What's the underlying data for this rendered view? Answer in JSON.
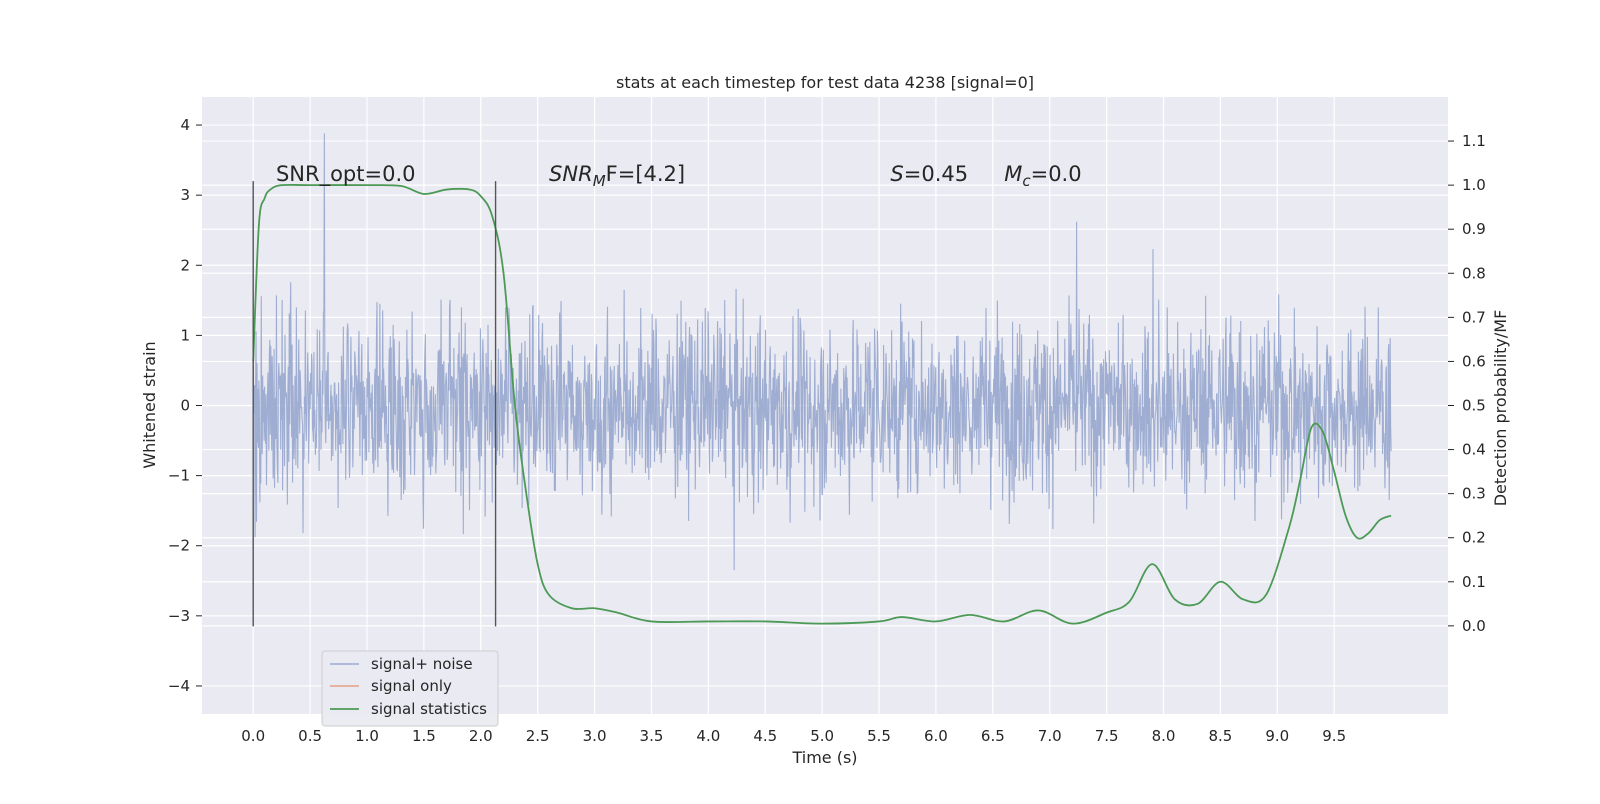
{
  "chart_data": {
    "type": "line",
    "title": "stats at each timestep for test data 4238 [signal=0]",
    "xlabel": "Time (s)",
    "ylabel": "Whitened strain",
    "ylabel_right": "Detection probability/MF",
    "xlim": [
      -0.45,
      10.5
    ],
    "ylim": [
      -4.4,
      4.4
    ],
    "ylim_right": [
      -0.2,
      1.2
    ],
    "x_ticks": [
      "0.0",
      "0.5",
      "1.0",
      "1.5",
      "2.0",
      "2.5",
      "3.0",
      "3.5",
      "4.0",
      "4.5",
      "5.0",
      "5.5",
      "6.0",
      "6.5",
      "7.0",
      "7.5",
      "8.0",
      "8.5",
      "9.0",
      "9.5"
    ],
    "y_ticks": [
      "4",
      "3",
      "2",
      "1",
      "0",
      "−1",
      "−2",
      "−3",
      "−4"
    ],
    "y_right_ticks": [
      "1.1",
      "1.0",
      "0.9",
      "0.8",
      "0.7",
      "0.6",
      "0.5",
      "0.4",
      "0.3",
      "0.2",
      "0.1",
      "0.0"
    ],
    "grid": true,
    "legend_position": "lower-left",
    "annotations": [
      {
        "text": "SNR_opt=0.0",
        "x": 0.2,
        "y": 3.2
      },
      {
        "text": "SNR",
        "sub": "M",
        "rest": "F=[4.2]",
        "italic": true,
        "x": 2.6,
        "y": 3.2
      },
      {
        "text": "S",
        "rest": "=0.45",
        "italic": true,
        "x": 5.6,
        "y": 3.2
      },
      {
        "text": "M",
        "sub": "c",
        "rest": "=0.0",
        "italic": true,
        "x": 6.6,
        "y": 3.2
      }
    ],
    "vlines": [
      {
        "x": 0.0,
        "y": [
          -3.15,
          3.2
        ]
      },
      {
        "x": 2.13,
        "y": [
          -3.15,
          3.2
        ]
      }
    ],
    "series": [
      {
        "name": "signal+ noise",
        "color": "#9aaacf",
        "axis": "left",
        "kind": "noise",
        "x_range": [
          0.0,
          10.0
        ],
        "samples": 2400,
        "seed": 4238,
        "typical_amplitude": 1.3,
        "peak_amplitude": 4.0
      },
      {
        "name": "signal only",
        "color": "#e3a186",
        "axis": "left",
        "x": [
          0.0,
          10.0
        ],
        "values": [
          0.0,
          0.0
        ]
      },
      {
        "name": "signal statistics",
        "color": "#4c9a55",
        "axis": "right",
        "x": [
          0.0,
          0.05,
          0.1,
          0.15,
          0.25,
          0.5,
          1.0,
          1.3,
          1.5,
          1.7,
          1.9,
          2.0,
          2.1,
          2.2,
          2.3,
          2.4,
          2.5,
          2.6,
          2.8,
          3.0,
          3.2,
          3.5,
          4.0,
          4.5,
          5.0,
          5.5,
          5.7,
          6.0,
          6.3,
          6.6,
          6.9,
          7.2,
          7.5,
          7.7,
          7.9,
          8.1,
          8.3,
          8.5,
          8.7,
          8.9,
          9.1,
          9.2,
          9.3,
          9.4,
          9.5,
          9.6,
          9.7,
          9.8,
          9.9,
          10.0
        ],
        "values": [
          0.6,
          0.91,
          0.97,
          0.99,
          1.0,
          1.0,
          1.0,
          0.998,
          0.98,
          0.99,
          0.99,
          0.975,
          0.93,
          0.8,
          0.5,
          0.3,
          0.14,
          0.07,
          0.04,
          0.04,
          0.03,
          0.01,
          0.01,
          0.01,
          0.005,
          0.01,
          0.02,
          0.01,
          0.025,
          0.01,
          0.035,
          0.005,
          0.03,
          0.055,
          0.14,
          0.06,
          0.05,
          0.1,
          0.06,
          0.07,
          0.22,
          0.33,
          0.45,
          0.44,
          0.35,
          0.25,
          0.2,
          0.21,
          0.24,
          0.25
        ]
      }
    ]
  }
}
